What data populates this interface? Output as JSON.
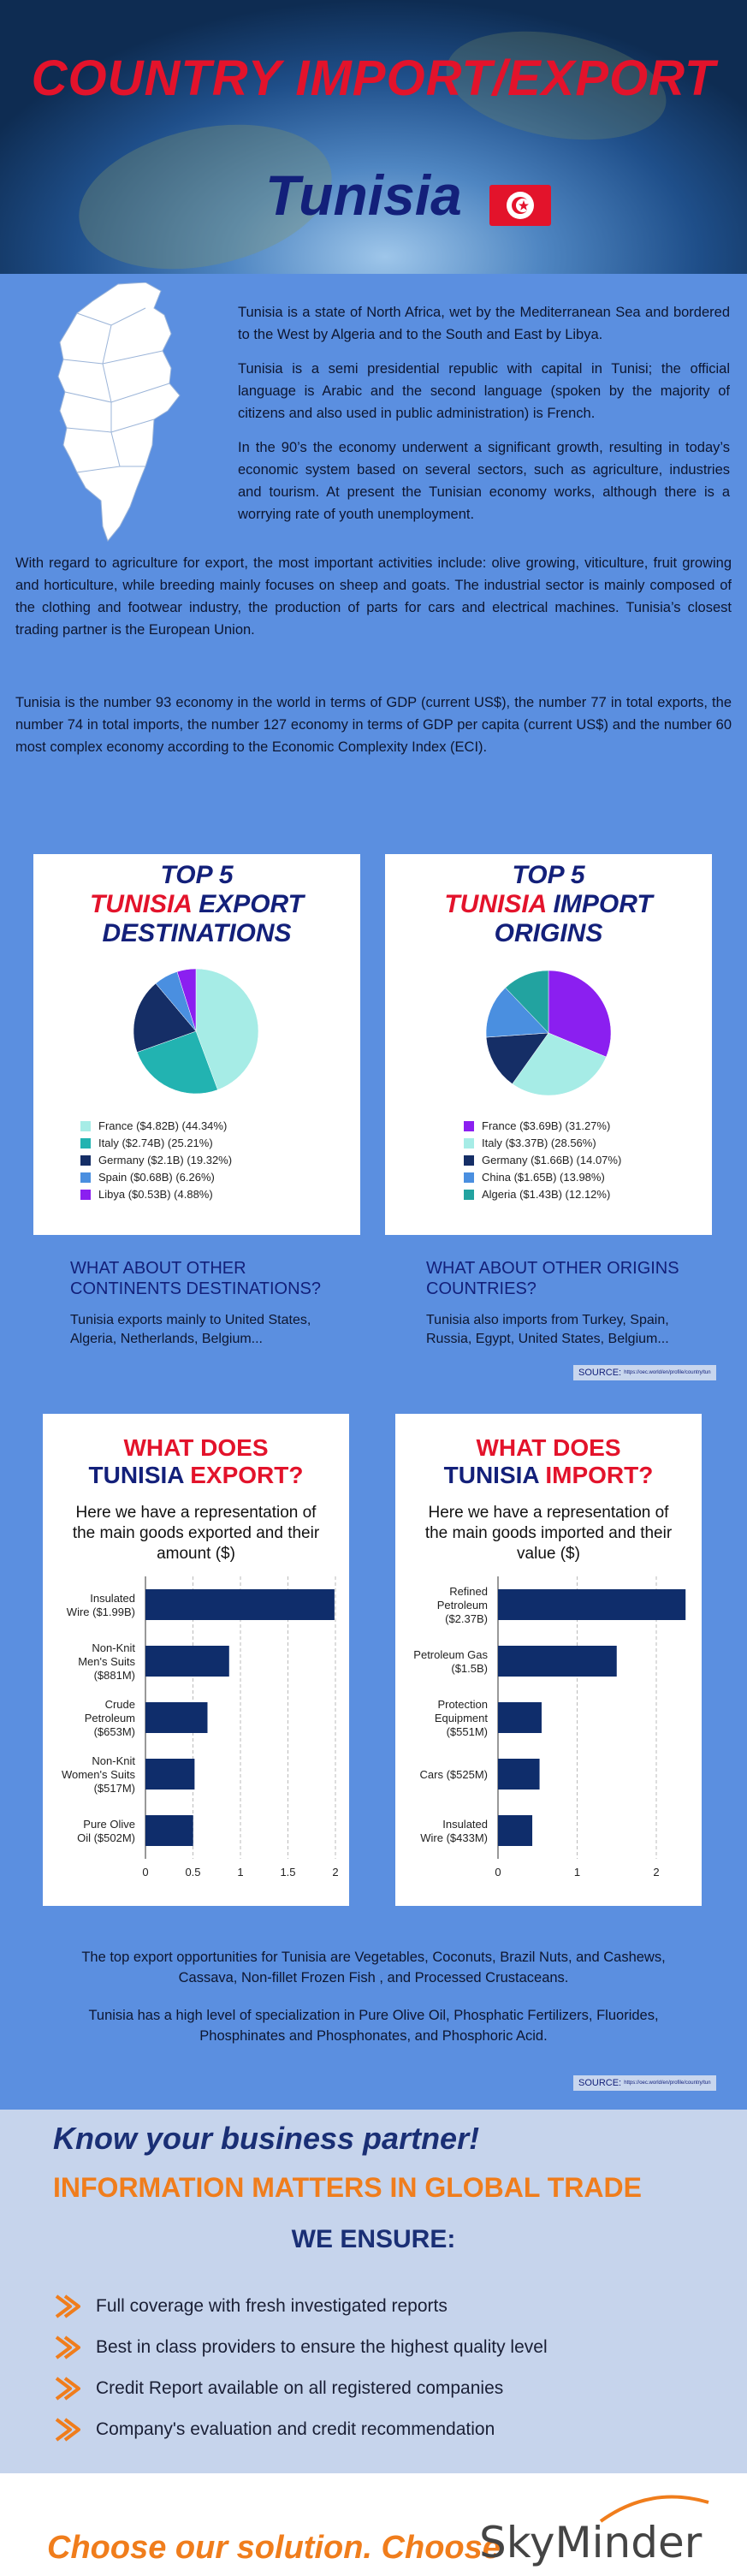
{
  "header": {
    "title": "COUNTRY IMPORT/EXPORT",
    "country": "Tunisia"
  },
  "intro": {
    "p1": "Tunisia is a state of North Africa, wet by the Mediterranean Sea and bordered to the West by Algeria and to the South and East by Libya.",
    "p2": "Tunisia is a semi presidential republic with capital in Tunisi; the official language is Arabic and the second language (spoken by the majority of citizens and also used in public administration) is French.",
    "p3": "In the 90’s the economy underwent a significant growth, resulting in today’s economic system based on several sectors, such as agriculture, industries and tourism. At present the Tunisian economy works, although there is a worrying rate of youth unemployment.",
    "p4": "With regard to agriculture for export, the most important activities include: olive growing, viticulture, fruit growing and horticulture, while breeding mainly focuses on sheep and goats. The industrial sector is mainly composed of the clothing and footwear industry, the production of parts for cars and electrical machines. Tunisia’s closest trading partner is the European Union.",
    "p5": "Tunisia is the number 93 economy in the world in terms of GDP (current US$), the number 77 in total exports, the number 74 in total imports, the number 127 economy in terms of GDP per capita (current US$) and the number 60 most complex economy according to the Economic Complexity Index (ECI)."
  },
  "export_card": {
    "line1": "TOP 5",
    "country": "TUNISIA",
    "line2_rest": " EXPORT",
    "line3": "DESTINATIONS"
  },
  "import_card": {
    "line1": "TOP 5",
    "country": "TUNISIA",
    "line2_rest": " IMPORT",
    "line3": "ORIGINS"
  },
  "other": {
    "export_h": "WHAT ABOUT OTHER CONTINENTS DESTINATIONS?",
    "export_t": "Tunisia exports mainly to United States, Algeria, Netherlands, Belgium...",
    "import_h": "WHAT ABOUT OTHER ORIGINS COUNTRIES?",
    "import_t": "Tunisia also imports from Turkey, Spain, Russia, Egypt, United States, Belgium...",
    "source_label": "SOURCE:",
    "source_url": "https://oec.world/en/profile/country/tun"
  },
  "export_bar_card": {
    "t1": "WHAT DOES",
    "country": "TUNISIA",
    "t2_rest": " EXPORT?",
    "subtitle": "Here we have a representation of the main goods exported and their amount ($)"
  },
  "import_bar_card": {
    "t1": "WHAT DOES",
    "country": "TUNISIA",
    "t2_rest": " IMPORT?",
    "subtitle": "Here we have a representation of the main goods imported and their value ($)"
  },
  "opportunities": {
    "p1": "The top export opportunities for Tunisia are Vegetables, Coconuts, Brazil Nuts, and Cashews, Cassava, Non-fillet Frozen Fish , and Processed Crustaceans.",
    "p2": "Tunisia has a high level of specialization in Pure Olive Oil, Phosphatic Fertilizers, Fluorides, Phosphinates and Phosphonates, and Phosphoric Acid."
  },
  "ensure": {
    "know": "Know your business partner!",
    "info": "INFORMATION MATTERS IN GLOBAL TRADE",
    "we": "WE ENSURE:",
    "items": [
      "Full coverage with fresh investigated reports",
      "Best in class providers to ensure the highest quality level",
      "Credit Report available on all registered companies",
      "Company's evaluation and credit recommendation"
    ]
  },
  "footer": {
    "choose": "Choose our solution. Choose",
    "brand": "SkyMinder"
  },
  "colors": {
    "red": "#e3132b",
    "navy": "#13207a",
    "orange": "#f07d1c",
    "bar": "#0f2d6b"
  },
  "chart_data": [
    {
      "type": "pie",
      "title": "TOP 5 TUNISIA EXPORT DESTINATIONS",
      "slices": [
        {
          "label": "France ($4.82B) (44.34%)",
          "value": 44.34,
          "color": "#a6ece6"
        },
        {
          "label": "Italy ($2.74B) (25.21%)",
          "value": 25.21,
          "color": "#22b3b1"
        },
        {
          "label": "Germany ($2.1B) (19.32%)",
          "value": 19.32,
          "color": "#152e66"
        },
        {
          "label": "Spain ($0.68B) (6.26%)",
          "value": 6.26,
          "color": "#4a8fe0"
        },
        {
          "label": "Libya ($0.53B) (4.88%)",
          "value": 4.88,
          "color": "#8b1ff0"
        }
      ]
    },
    {
      "type": "pie",
      "title": "TOP 5 TUNISIA IMPORT ORIGINS",
      "slices": [
        {
          "label": "France ($3.69B) (31.27%)",
          "value": 31.27,
          "color": "#8b1ff0"
        },
        {
          "label": "Italy ($3.37B) (28.56%)",
          "value": 28.56,
          "color": "#a6ece6"
        },
        {
          "label": "Germany ($1.66B) (14.07%)",
          "value": 14.07,
          "color": "#152e66"
        },
        {
          "label": "China ($1.65B) (13.98%)",
          "value": 13.98,
          "color": "#4a8fe0"
        },
        {
          "label": "Algeria ($1.43B) (12.12%)",
          "value": 12.12,
          "color": "#22a3a0"
        }
      ]
    },
    {
      "type": "bar",
      "title": "WHAT DOES TUNISIA EXPORT?",
      "categories": [
        "Insulated Wire ($1.99B)",
        "Non-Knit Men's Suits ($881M)",
        "Crude Petroleum ($653M)",
        "Non-Knit Women's Suits ($517M)",
        "Pure Olive Oil ($502M)"
      ],
      "values": [
        1.99,
        0.881,
        0.653,
        0.517,
        0.502
      ],
      "xlim": [
        0,
        2
      ],
      "ticks": [
        "0",
        "0.5",
        "1",
        "1.5",
        "2"
      ]
    },
    {
      "type": "bar",
      "title": "WHAT DOES TUNISIA IMPORT?",
      "categories": [
        "Refined Petroleum ($2.37B)",
        "Petroleum Gas ($1.5B)",
        "Protection Equipment ($551M)",
        "Cars ($525M)",
        "Insulated Wire ($433M)"
      ],
      "values": [
        2.37,
        1.5,
        0.551,
        0.525,
        0.433
      ],
      "xlim": [
        0,
        2.4
      ],
      "ticks": [
        "0",
        "1",
        "2"
      ]
    }
  ]
}
